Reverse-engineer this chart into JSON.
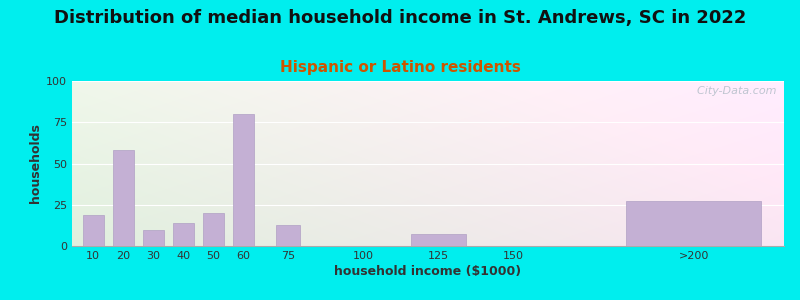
{
  "title": "Distribution of median household income in St. Andrews, SC in 2022",
  "subtitle": "Hispanic or Latino residents",
  "xlabel": "household income ($1000)",
  "ylabel": "households",
  "background_color": "#00EEEE",
  "bar_color": "#c4b0d4",
  "bar_edge_color": "#b0a0c4",
  "values": [
    19,
    58,
    10,
    14,
    20,
    80,
    13,
    0,
    7,
    0,
    27
  ],
  "bar_positions": [
    10,
    20,
    30,
    40,
    50,
    60,
    75,
    100,
    125,
    150,
    210
  ],
  "bar_widths": [
    7,
    7,
    7,
    7,
    7,
    7,
    8,
    8,
    18,
    8,
    45
  ],
  "ylim": [
    0,
    100
  ],
  "yticks": [
    0,
    25,
    50,
    75,
    100
  ],
  "xtick_labels": [
    "10",
    "20",
    "30",
    "40",
    "50",
    "60",
    "75",
    "100",
    "125",
    "150",
    ">200"
  ],
  "xtick_positions": [
    10,
    20,
    30,
    40,
    50,
    60,
    75,
    100,
    125,
    150,
    210
  ],
  "xlim": [
    3,
    240
  ],
  "title_fontsize": 13,
  "subtitle_fontsize": 11,
  "subtitle_color": "#cc5500",
  "axis_label_fontsize": 9,
  "tick_fontsize": 8,
  "watermark": "  City-Data.com"
}
